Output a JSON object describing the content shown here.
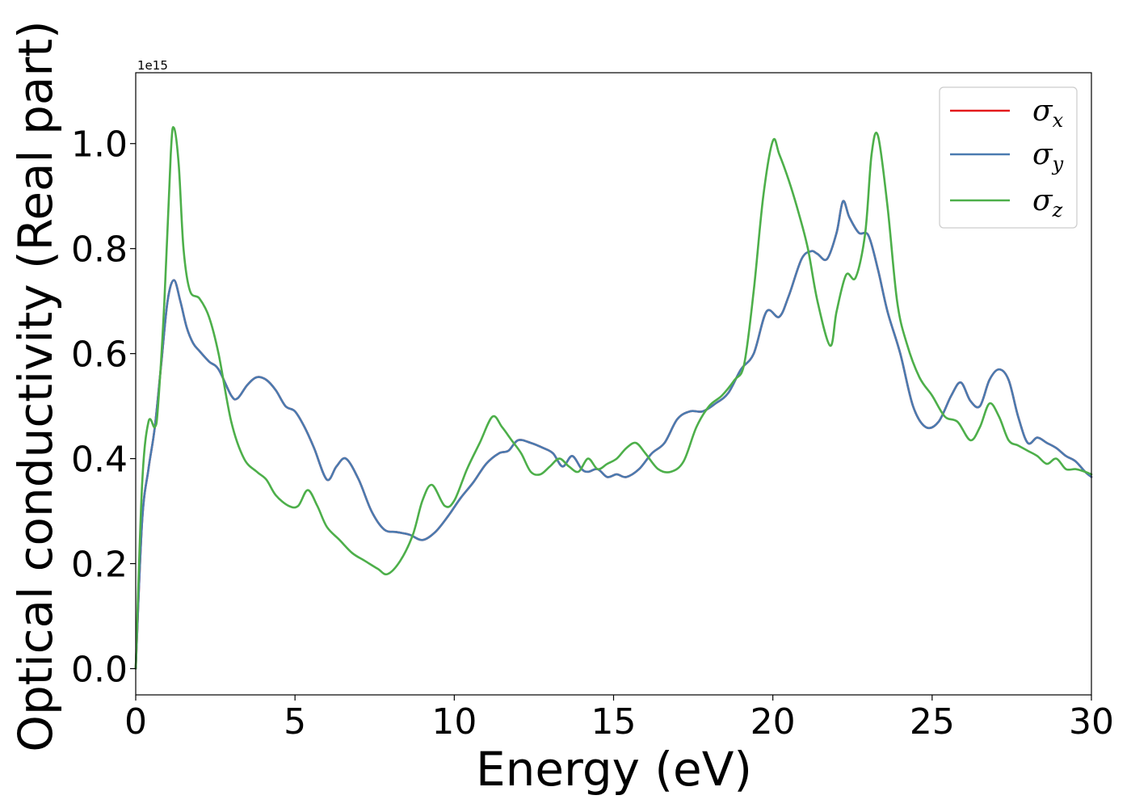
{
  "chart_data": {
    "type": "line",
    "title": "",
    "xlabel": "Energy (eV)",
    "ylabel": "Optical conductivity (Real part)",
    "y_offset_label": "1e15",
    "xlim": [
      0,
      30
    ],
    "ylim": [
      -0.05,
      1.135
    ],
    "xticks": [
      0,
      5,
      10,
      15,
      20,
      25,
      30
    ],
    "xtick_labels": [
      "0",
      "5",
      "10",
      "15",
      "20",
      "25",
      "30"
    ],
    "yticks": [
      0.0,
      0.2,
      0.4,
      0.6,
      0.8,
      1.0
    ],
    "ytick_labels": [
      "0.0",
      "0.2",
      "0.4",
      "0.6",
      "0.8",
      "1.0"
    ],
    "grid": false,
    "legend_position": "top-right",
    "series": [
      {
        "name": "σx",
        "name_base": "σ",
        "name_sub": "x",
        "color": "#e41a1c",
        "x": [
          0,
          0.2,
          0.4,
          0.6,
          0.8,
          1.0,
          1.2,
          1.4,
          1.6,
          1.8,
          2.0,
          2.3,
          2.6,
          3.0,
          3.2,
          3.5,
          3.8,
          4.1,
          4.4,
          4.7,
          5.0,
          5.3,
          5.6,
          6.0,
          6.3,
          6.6,
          7.0,
          7.4,
          7.8,
          8.2,
          8.6,
          9.0,
          9.4,
          9.8,
          10.2,
          10.6,
          11.0,
          11.4,
          11.7,
          12.0,
          12.4,
          12.8,
          13.1,
          13.4,
          13.7,
          14.0,
          14.2,
          14.5,
          14.8,
          15.1,
          15.4,
          15.8,
          16.2,
          16.6,
          17.0,
          17.4,
          17.8,
          18.2,
          18.6,
          19.0,
          19.4,
          19.8,
          20.2,
          20.5,
          20.9,
          21.2,
          21.4,
          21.7,
          22.0,
          22.2,
          22.4,
          22.7,
          23.0,
          23.3,
          23.6,
          24.0,
          24.4,
          24.8,
          25.2,
          25.6,
          25.9,
          26.2,
          26.5,
          26.8,
          27.1,
          27.4,
          27.7,
          28.0,
          28.3,
          28.6,
          28.9,
          29.2,
          29.5,
          29.8,
          30.0
        ],
        "y": [
          0.0,
          0.28,
          0.38,
          0.46,
          0.58,
          0.7,
          0.74,
          0.7,
          0.65,
          0.62,
          0.605,
          0.585,
          0.57,
          0.52,
          0.515,
          0.54,
          0.555,
          0.55,
          0.53,
          0.5,
          0.49,
          0.46,
          0.42,
          0.36,
          0.385,
          0.4,
          0.36,
          0.3,
          0.265,
          0.26,
          0.255,
          0.245,
          0.26,
          0.29,
          0.325,
          0.355,
          0.39,
          0.41,
          0.415,
          0.435,
          0.43,
          0.42,
          0.41,
          0.385,
          0.405,
          0.38,
          0.375,
          0.38,
          0.365,
          0.37,
          0.365,
          0.38,
          0.41,
          0.43,
          0.475,
          0.49,
          0.49,
          0.505,
          0.525,
          0.57,
          0.6,
          0.68,
          0.67,
          0.71,
          0.78,
          0.795,
          0.79,
          0.78,
          0.83,
          0.89,
          0.86,
          0.83,
          0.825,
          0.76,
          0.68,
          0.6,
          0.5,
          0.46,
          0.47,
          0.52,
          0.545,
          0.51,
          0.5,
          0.55,
          0.57,
          0.55,
          0.48,
          0.43,
          0.44,
          0.43,
          0.42,
          0.405,
          0.395,
          0.375,
          0.365
        ]
      },
      {
        "name": "σy",
        "name_base": "σ",
        "name_sub": "y",
        "color": "#4a7bb0",
        "x": [
          0,
          0.2,
          0.4,
          0.6,
          0.8,
          1.0,
          1.2,
          1.4,
          1.6,
          1.8,
          2.0,
          2.3,
          2.6,
          3.0,
          3.2,
          3.5,
          3.8,
          4.1,
          4.4,
          4.7,
          5.0,
          5.3,
          5.6,
          6.0,
          6.3,
          6.6,
          7.0,
          7.4,
          7.8,
          8.2,
          8.6,
          9.0,
          9.4,
          9.8,
          10.2,
          10.6,
          11.0,
          11.4,
          11.7,
          12.0,
          12.4,
          12.8,
          13.1,
          13.4,
          13.7,
          14.0,
          14.2,
          14.5,
          14.8,
          15.1,
          15.4,
          15.8,
          16.2,
          16.6,
          17.0,
          17.4,
          17.8,
          18.2,
          18.6,
          19.0,
          19.4,
          19.8,
          20.2,
          20.5,
          20.9,
          21.2,
          21.4,
          21.7,
          22.0,
          22.2,
          22.4,
          22.7,
          23.0,
          23.3,
          23.6,
          24.0,
          24.4,
          24.8,
          25.2,
          25.6,
          25.9,
          26.2,
          26.5,
          26.8,
          27.1,
          27.4,
          27.7,
          28.0,
          28.3,
          28.6,
          28.9,
          29.2,
          29.5,
          29.8,
          30.0
        ],
        "y": [
          0.0,
          0.28,
          0.38,
          0.46,
          0.58,
          0.7,
          0.74,
          0.7,
          0.65,
          0.62,
          0.605,
          0.585,
          0.57,
          0.52,
          0.515,
          0.54,
          0.555,
          0.55,
          0.53,
          0.5,
          0.49,
          0.46,
          0.42,
          0.36,
          0.385,
          0.4,
          0.36,
          0.3,
          0.265,
          0.26,
          0.255,
          0.245,
          0.26,
          0.29,
          0.325,
          0.355,
          0.39,
          0.41,
          0.415,
          0.435,
          0.43,
          0.42,
          0.41,
          0.385,
          0.405,
          0.38,
          0.375,
          0.38,
          0.365,
          0.37,
          0.365,
          0.38,
          0.41,
          0.43,
          0.475,
          0.49,
          0.49,
          0.505,
          0.525,
          0.57,
          0.6,
          0.68,
          0.67,
          0.71,
          0.78,
          0.795,
          0.79,
          0.78,
          0.83,
          0.89,
          0.86,
          0.83,
          0.825,
          0.76,
          0.68,
          0.6,
          0.5,
          0.46,
          0.47,
          0.52,
          0.545,
          0.51,
          0.5,
          0.55,
          0.57,
          0.55,
          0.48,
          0.43,
          0.44,
          0.43,
          0.42,
          0.405,
          0.395,
          0.375,
          0.365
        ]
      },
      {
        "name": "σz",
        "name_base": "σ",
        "name_sub": "z",
        "color": "#4daf4a",
        "x": [
          0,
          0.2,
          0.4,
          0.6,
          0.7,
          0.9,
          1.1,
          1.2,
          1.35,
          1.5,
          1.7,
          2.0,
          2.3,
          2.6,
          3.0,
          3.4,
          3.8,
          4.1,
          4.4,
          4.8,
          5.1,
          5.4,
          5.7,
          6.0,
          6.4,
          6.8,
          7.2,
          7.6,
          7.9,
          8.3,
          8.7,
          9.0,
          9.3,
          9.7,
          10.0,
          10.4,
          10.8,
          11.2,
          11.5,
          11.8,
          12.1,
          12.4,
          12.7,
          13.0,
          13.3,
          13.6,
          13.9,
          14.2,
          14.5,
          14.8,
          15.1,
          15.4,
          15.7,
          16.0,
          16.4,
          16.8,
          17.2,
          17.6,
          18.0,
          18.4,
          18.8,
          19.1,
          19.4,
          19.7,
          20.0,
          20.2,
          20.5,
          20.8,
          21.1,
          21.4,
          21.8,
          22.0,
          22.3,
          22.6,
          22.9,
          23.1,
          23.3,
          23.6,
          23.9,
          24.2,
          24.6,
          25.0,
          25.4,
          25.8,
          26.2,
          26.5,
          26.8,
          27.1,
          27.4,
          27.7,
          28.0,
          28.3,
          28.6,
          28.9,
          29.2,
          29.5,
          29.8,
          30.0
        ],
        "y": [
          0.0,
          0.35,
          0.47,
          0.46,
          0.5,
          0.7,
          0.98,
          1.03,
          0.96,
          0.8,
          0.72,
          0.705,
          0.67,
          0.6,
          0.47,
          0.4,
          0.375,
          0.36,
          0.33,
          0.31,
          0.31,
          0.34,
          0.31,
          0.27,
          0.245,
          0.22,
          0.205,
          0.19,
          0.18,
          0.205,
          0.255,
          0.32,
          0.35,
          0.31,
          0.32,
          0.38,
          0.43,
          0.48,
          0.46,
          0.435,
          0.41,
          0.375,
          0.37,
          0.385,
          0.4,
          0.385,
          0.375,
          0.4,
          0.38,
          0.39,
          0.4,
          0.42,
          0.43,
          0.41,
          0.38,
          0.375,
          0.395,
          0.46,
          0.5,
          0.52,
          0.55,
          0.58,
          0.72,
          0.9,
          1.005,
          0.98,
          0.93,
          0.87,
          0.8,
          0.7,
          0.615,
          0.68,
          0.75,
          0.745,
          0.83,
          0.98,
          1.015,
          0.88,
          0.7,
          0.62,
          0.555,
          0.52,
          0.48,
          0.47,
          0.435,
          0.46,
          0.505,
          0.48,
          0.435,
          0.425,
          0.415,
          0.405,
          0.39,
          0.4,
          0.38,
          0.38,
          0.375,
          0.37
        ]
      }
    ]
  }
}
